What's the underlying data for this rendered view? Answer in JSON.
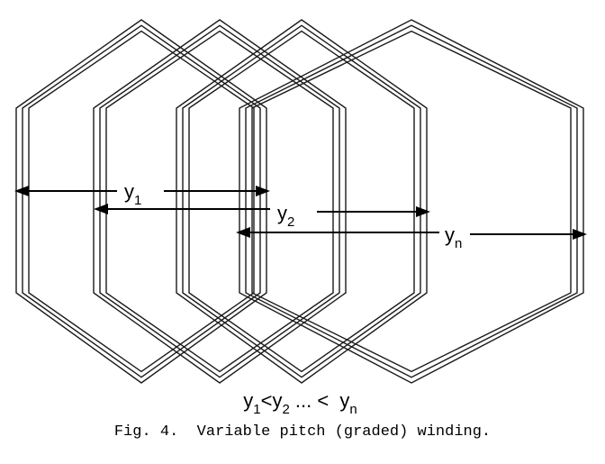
{
  "labels": {
    "y1": {
      "base": "y",
      "sub": "1"
    },
    "y2": {
      "base": "y",
      "sub": "2"
    },
    "yn": {
      "base": "y",
      "sub": "n"
    }
  },
  "relation": {
    "y1": "y",
    "s1": "1",
    "lt1": "<",
    "y2": "y",
    "s2": "2",
    "dots": " ... <  ",
    "yn": "y",
    "sn": "n"
  },
  "caption": "Fig. 4.  Variable pitch (graded) winding."
}
